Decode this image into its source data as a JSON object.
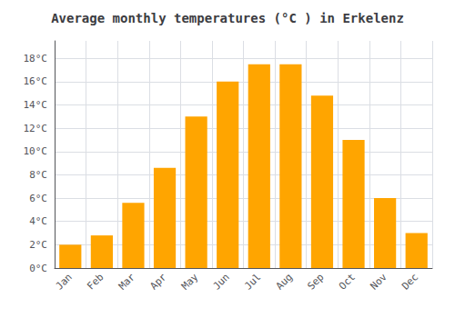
{
  "chart_data": {
    "type": "bar",
    "title": "Average monthly temperatures (°C ) in Erkelenz",
    "categories": [
      "Jan",
      "Feb",
      "Mar",
      "Apr",
      "May",
      "Jun",
      "Jul",
      "Aug",
      "Sep",
      "Oct",
      "Nov",
      "Dec"
    ],
    "values": [
      2.0,
      2.8,
      5.6,
      8.6,
      13.0,
      16.0,
      17.5,
      17.5,
      14.8,
      11.0,
      6.0,
      3.0
    ],
    "color": "#FFA500",
    "ylim": [
      0,
      19.5
    ],
    "yticks": [
      {
        "value": 0,
        "label": "0°C"
      },
      {
        "value": 2,
        "label": "2°C"
      },
      {
        "value": 4,
        "label": "4°C"
      },
      {
        "value": 6,
        "label": "6°C"
      },
      {
        "value": 8,
        "label": "8°C"
      },
      {
        "value": 10,
        "label": "10°C"
      },
      {
        "value": 12,
        "label": "12°C"
      },
      {
        "value": 14,
        "label": "14°C"
      },
      {
        "value": 16,
        "label": "16°C"
      },
      {
        "value": 18,
        "label": "18°C"
      }
    ],
    "grid": true
  }
}
